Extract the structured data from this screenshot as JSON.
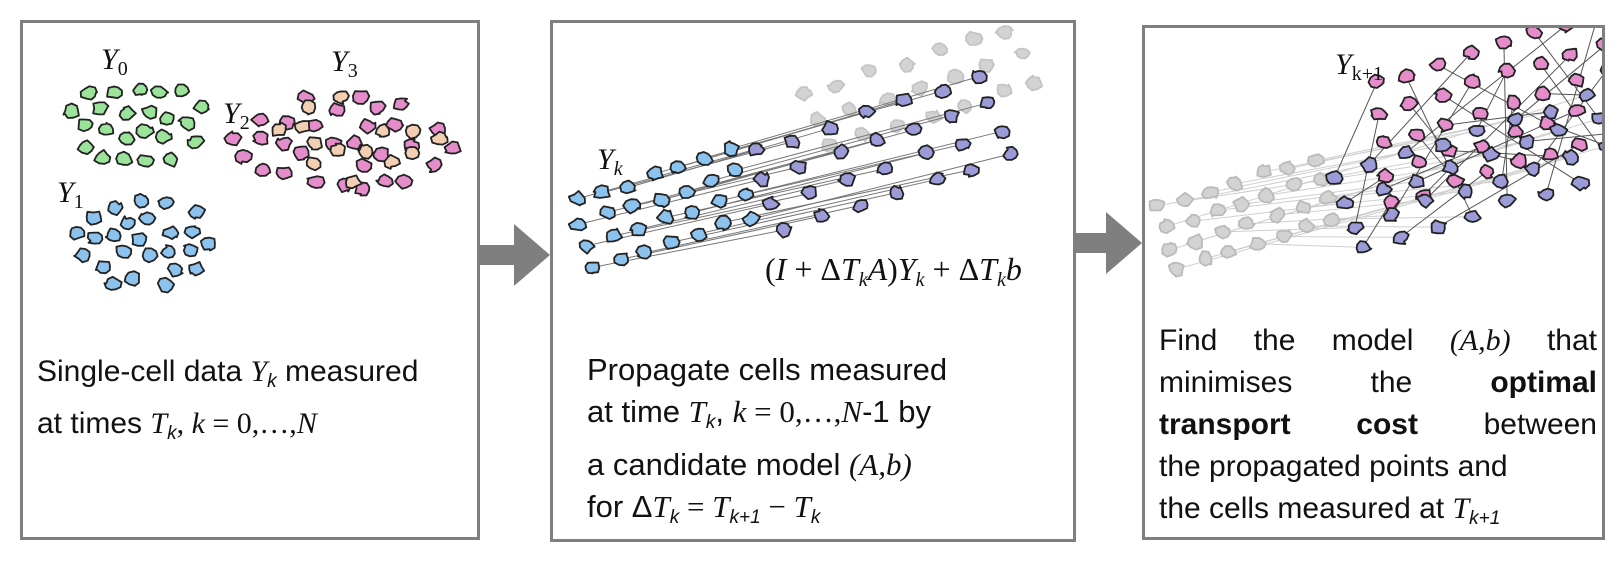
{
  "colors": {
    "green": "#9be39b",
    "blue": "#8cc3ee",
    "pink": "#e58ccb",
    "peach": "#f2cfb3",
    "purple": "#9b9bd8",
    "grey": "#d3d3d3",
    "border": "#7f7f7f",
    "arrow": "#7f7f7f"
  },
  "panel1": {
    "labels": {
      "y0": "Y",
      "y0_sub": "0",
      "y1": "Y",
      "y1_sub": "1",
      "y2": "Y",
      "y2_sub": "2",
      "y3": "Y",
      "y3_sub": "3"
    },
    "caption": {
      "t1": "Single-cell data ",
      "v1": "Y",
      "v1_sub": "k",
      "t2": " measured",
      "t3": "at times ",
      "v2": "T",
      "v2_sub": "k",
      "t4": ", ",
      "v3": "k",
      "t5": " = 0,…,",
      "v4": "N"
    }
  },
  "panel2": {
    "label": "Y",
    "label_sub": "k",
    "formula": {
      "p1": "(",
      "I": "I",
      "p2": " + Δ",
      "T1": "T",
      "k1": "k",
      "A": "A",
      "p3": ")",
      "Y": "Y",
      "k2": "k",
      "p4": " + Δ",
      "T2": "T",
      "k3": "k",
      "b": "b"
    },
    "caption": {
      "l1": "Propagate cells measured",
      "l2a": "at time ",
      "l2v": "T",
      "l2vs": "k",
      "l2b": ",  ",
      "l2k": "k",
      "l2c": " = 0,…,",
      "l2N": "N",
      "l2d": "-1 by",
      "l3a": "a  candidate  model  ",
      "l3m": "(A,b)",
      "l4a": "for  Δ",
      "l4T": "T",
      "l4k": "k",
      "l4b": " = ",
      "l4T2": "T",
      "l4k2": "k+1",
      "l4c": " − ",
      "l4T3": "T",
      "l4k3": "k"
    }
  },
  "panel3": {
    "label": "Y",
    "label_sub": "k+1",
    "caption": {
      "l1a": "Find  the  model  ",
      "l1m": "(A,b)",
      "l1b": "  that",
      "l2a": "minimises  the  ",
      "l2b": "optimal",
      "l3a": "transport  cost",
      "l3b": "  between",
      "l4": "the propagated points and",
      "l5a": "the cells measured at ",
      "l5T": "T",
      "l5k": "k+1"
    }
  }
}
